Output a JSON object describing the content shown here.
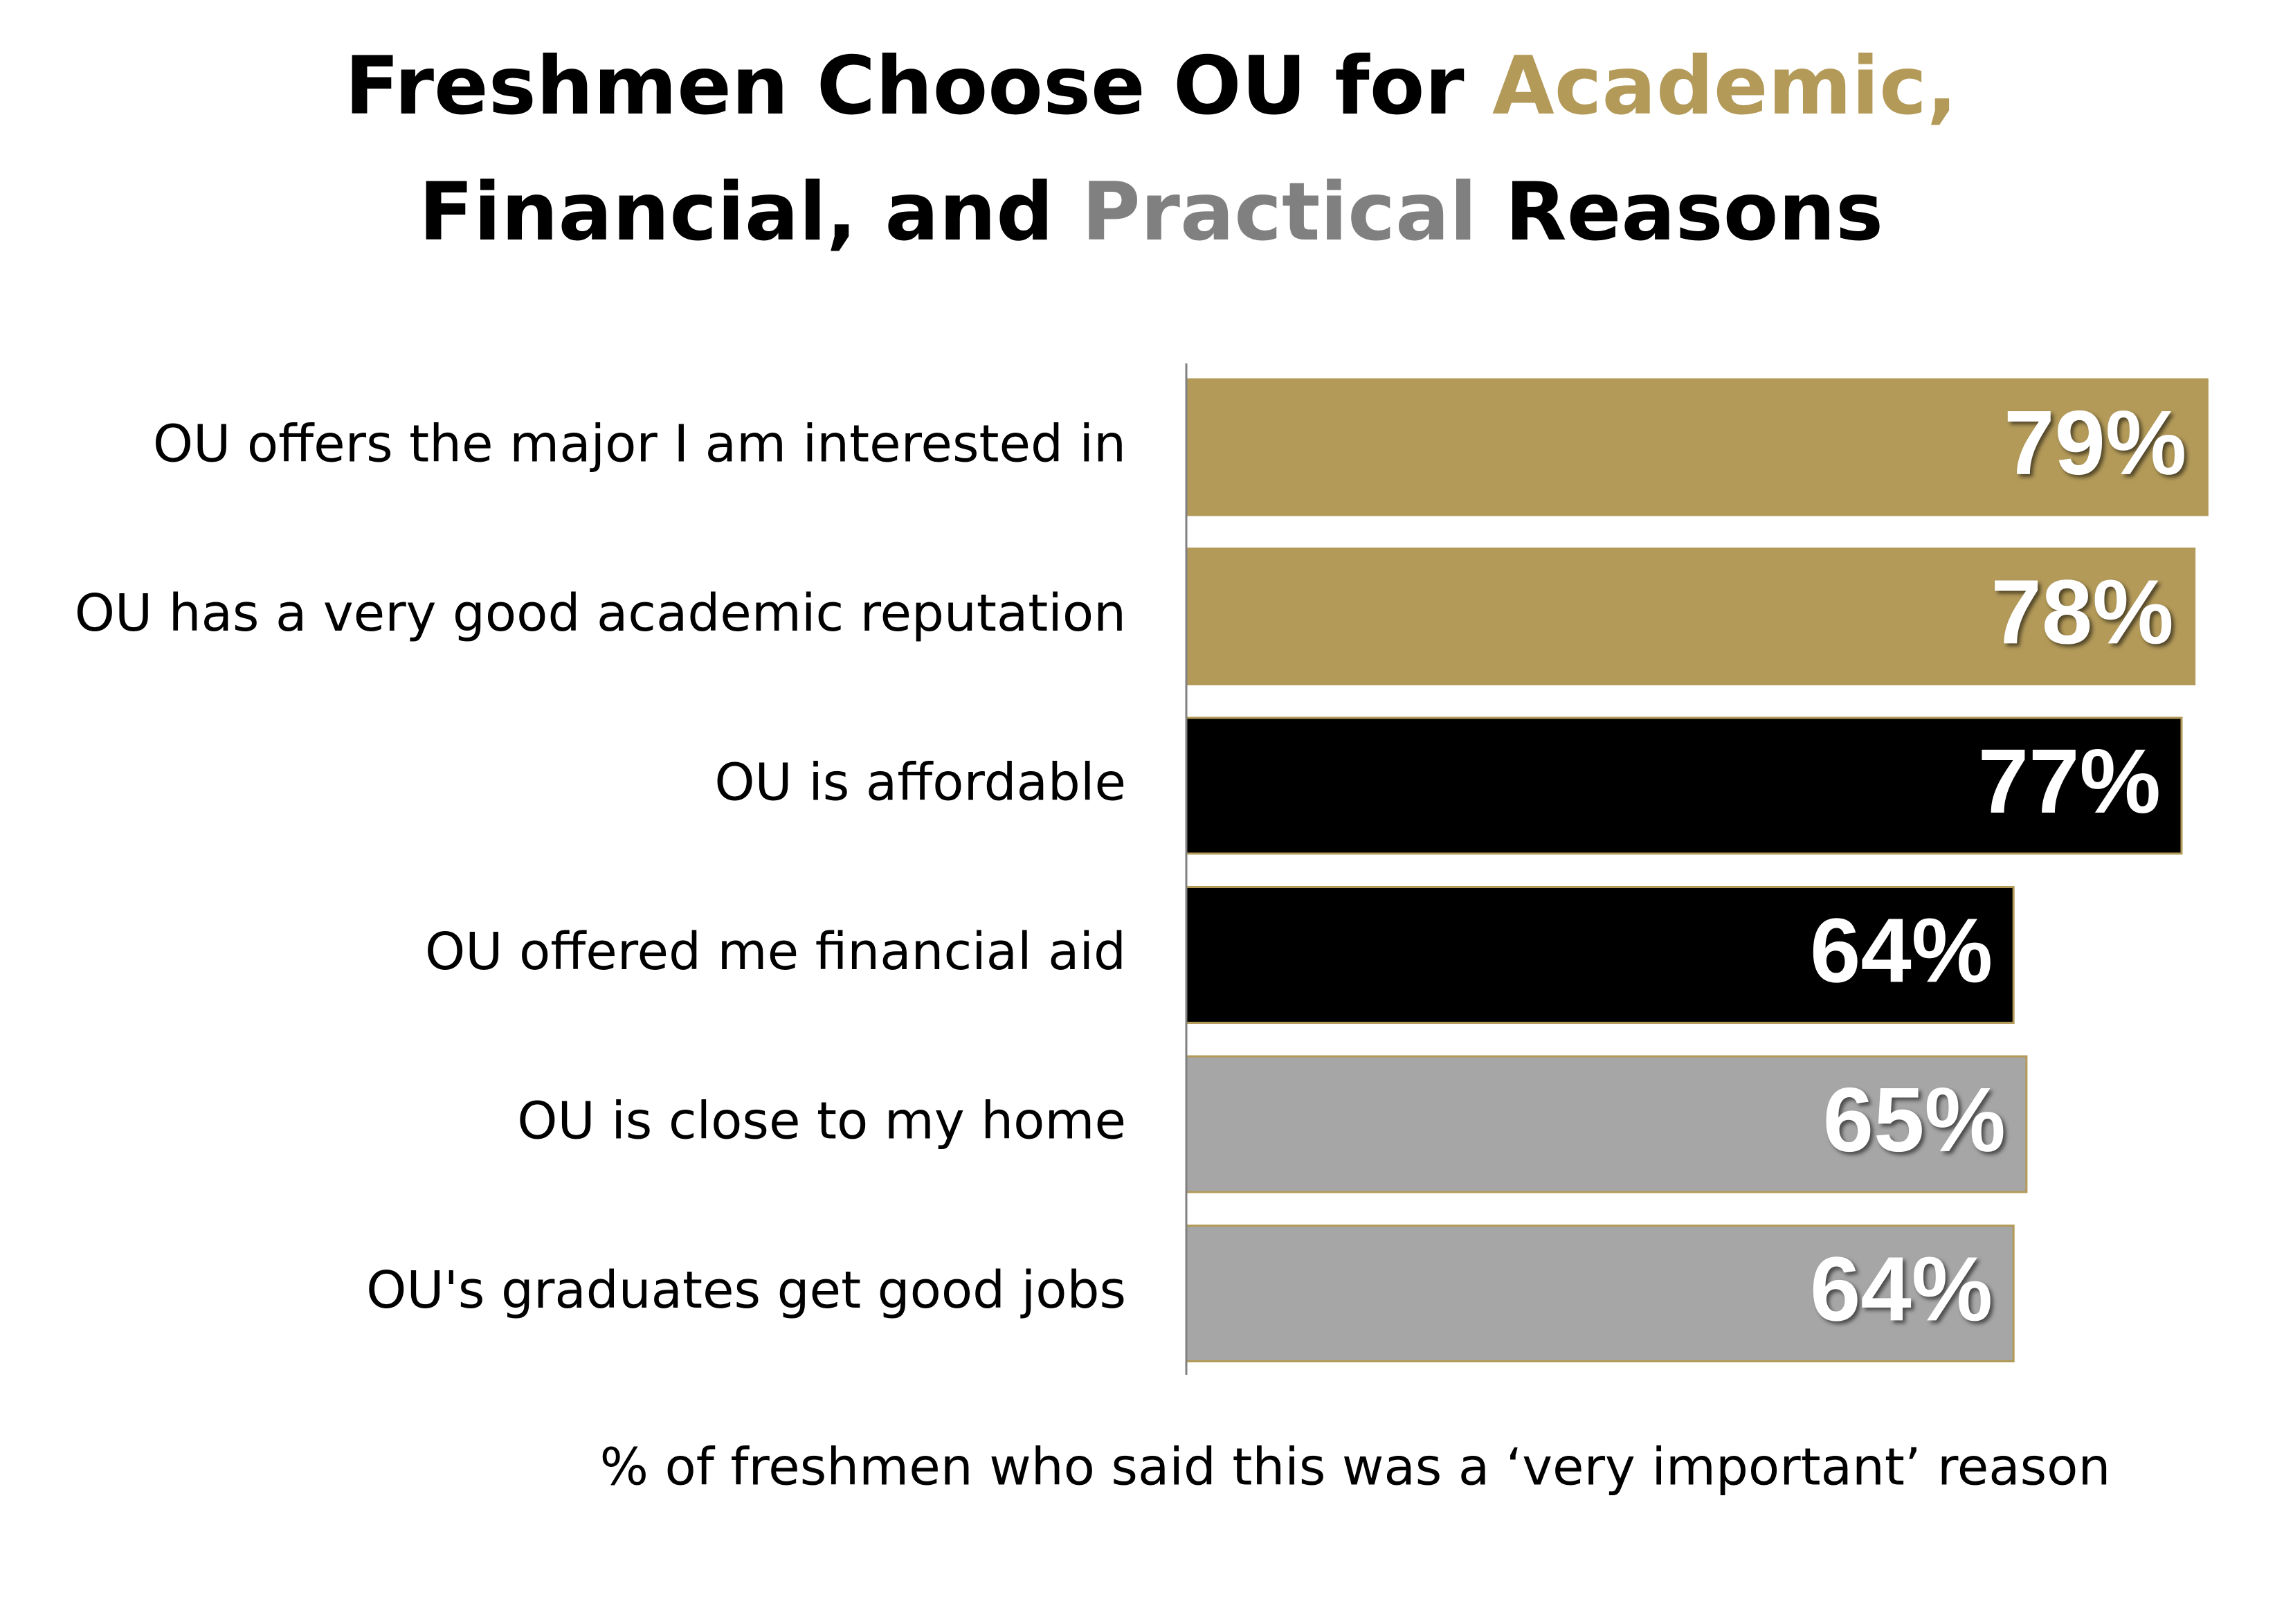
{
  "chart_data": {
    "type": "hbar",
    "title_lines": [
      [
        {
          "text": "Freshmen Choose OU for ",
          "color": "#000000"
        },
        {
          "text": "Academic,",
          "color": "#b39a59"
        }
      ],
      [
        {
          "text": "Financial, and ",
          "color": "#000000"
        },
        {
          "text": "Practical",
          "color": "#808080"
        },
        {
          "text": " Reasons",
          "color": "#000000"
        }
      ]
    ],
    "categories": [
      "OU offers the major I am interested in",
      "OU has a very good academic reputation",
      "OU is affordable",
      "OU offered me financial aid",
      "OU is close to my home",
      "OU's graduates get good jobs"
    ],
    "values": [
      79,
      78,
      77,
      64,
      65,
      64
    ],
    "value_labels": [
      "79%",
      "78%",
      "77%",
      "64%",
      "65%",
      "64%"
    ],
    "colors": [
      "#b39a59",
      "#b39a59",
      "#000000",
      "#000000",
      "#a6a6a6",
      "#a6a6a6"
    ],
    "xlim": [
      0,
      80
    ],
    "xlabel": "% of freshmen who said this was a ‘very important’ reason"
  }
}
